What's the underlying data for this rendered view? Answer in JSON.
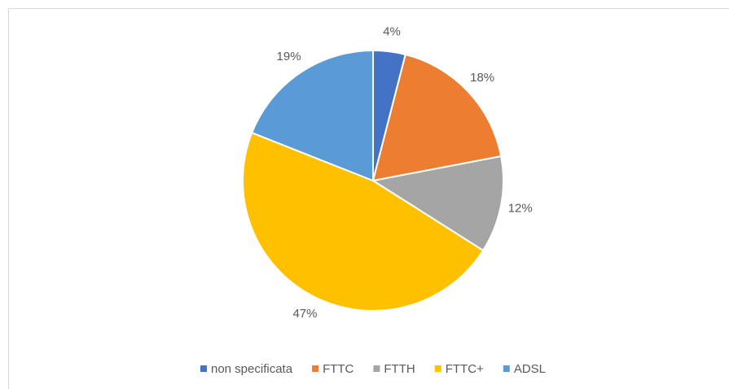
{
  "chart_data": {
    "type": "pie",
    "categories": [
      "non specificata",
      "FTTC",
      "FTTH",
      "FTTC+",
      "ADSL"
    ],
    "values": [
      4,
      18,
      12,
      47,
      19
    ],
    "value_labels": [
      "4%",
      "18%",
      "12%",
      "47%",
      "19%"
    ],
    "colors": [
      "#4472c4",
      "#ed7d31",
      "#a5a5a5",
      "#ffc000",
      "#5b9bd5"
    ],
    "legend": "bottom"
  }
}
